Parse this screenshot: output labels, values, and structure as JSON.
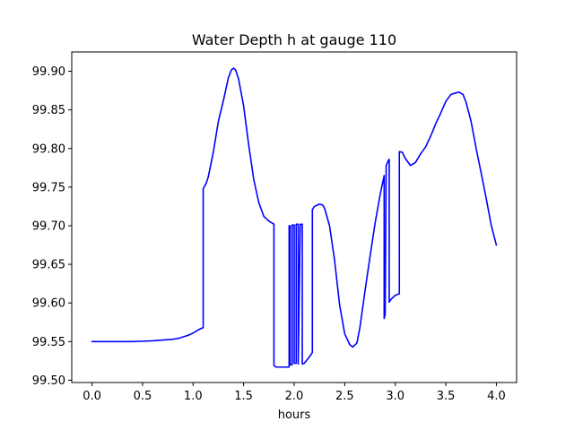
{
  "chart_data": {
    "type": "line",
    "title": "Water Depth h at gauge 110",
    "xlabel": "hours",
    "ylabel": "",
    "xlim": [
      -0.2,
      4.2
    ],
    "ylim": [
      99.497,
      99.925
    ],
    "xticks": [
      0.0,
      0.5,
      1.0,
      1.5,
      2.0,
      2.5,
      3.0,
      3.5,
      4.0
    ],
    "xtick_labels": [
      "0.0",
      "0.5",
      "1.0",
      "1.5",
      "2.0",
      "2.5",
      "3.0",
      "3.5",
      "4.0"
    ],
    "yticks": [
      99.5,
      99.55,
      99.6,
      99.65,
      99.7,
      99.75,
      99.8,
      99.85,
      99.9
    ],
    "ytick_labels": [
      "99.50",
      "99.55",
      "99.60",
      "99.65",
      "99.70",
      "99.75",
      "99.80",
      "99.85",
      "99.90"
    ],
    "grid": false,
    "line_color": "#0000ff",
    "series": [
      {
        "x": [
          0.0,
          0.1,
          0.2,
          0.3,
          0.4,
          0.5,
          0.6,
          0.7,
          0.8,
          0.85,
          0.9,
          0.95,
          1.0,
          1.05,
          1.08,
          1.1,
          1.1,
          1.13,
          1.15,
          1.2,
          1.25,
          1.3,
          1.35,
          1.38,
          1.4,
          1.42,
          1.45,
          1.5,
          1.55,
          1.6,
          1.65,
          1.7,
          1.75,
          1.8,
          1.8,
          1.82,
          1.85,
          1.9,
          1.95,
          1.95,
          1.96,
          1.96,
          1.98,
          1.98,
          2.0,
          2.0,
          2.02,
          2.02,
          2.04,
          2.04,
          2.06,
          2.08,
          2.08,
          2.1,
          2.15,
          2.18,
          2.18,
          2.2,
          2.25,
          2.28,
          2.3,
          2.35,
          2.4,
          2.45,
          2.5,
          2.55,
          2.58,
          2.62,
          2.65,
          2.7,
          2.75,
          2.8,
          2.85,
          2.89,
          2.89,
          2.9,
          2.91,
          2.91,
          2.93,
          2.94,
          2.94,
          2.96,
          3.0,
          3.04,
          3.04,
          3.07,
          3.1,
          3.15,
          3.2,
          3.25,
          3.3,
          3.35,
          3.4,
          3.45,
          3.5,
          3.55,
          3.6,
          3.63,
          3.67,
          3.7,
          3.75,
          3.8,
          3.85,
          3.9,
          3.95,
          4.0
        ],
        "y": [
          99.55,
          99.55,
          99.55,
          99.55,
          99.55,
          99.5505,
          99.551,
          99.552,
          99.553,
          99.554,
          99.556,
          99.558,
          99.561,
          99.565,
          99.567,
          99.568,
          99.748,
          99.755,
          99.763,
          99.795,
          99.835,
          99.862,
          99.892,
          99.902,
          99.904,
          99.902,
          99.89,
          99.855,
          99.805,
          99.76,
          99.73,
          99.712,
          99.706,
          99.702,
          99.519,
          99.517,
          99.517,
          99.517,
          99.517,
          99.7,
          99.7,
          99.52,
          99.52,
          99.701,
          99.701,
          99.522,
          99.522,
          99.702,
          99.702,
          99.521,
          99.702,
          99.702,
          99.521,
          99.522,
          99.53,
          99.536,
          99.721,
          99.725,
          99.728,
          99.727,
          99.723,
          99.7,
          99.655,
          99.597,
          99.56,
          99.546,
          99.543,
          99.548,
          99.568,
          99.615,
          99.66,
          99.703,
          99.74,
          99.765,
          99.58,
          99.585,
          99.777,
          99.778,
          99.784,
          99.786,
          99.601,
          99.605,
          99.61,
          99.612,
          99.796,
          99.795,
          99.787,
          99.778,
          99.782,
          99.793,
          99.802,
          99.816,
          99.832,
          99.846,
          99.861,
          99.87,
          99.872,
          99.873,
          99.87,
          99.86,
          99.835,
          99.8,
          99.768,
          99.735,
          99.7,
          99.675
        ]
      }
    ]
  }
}
